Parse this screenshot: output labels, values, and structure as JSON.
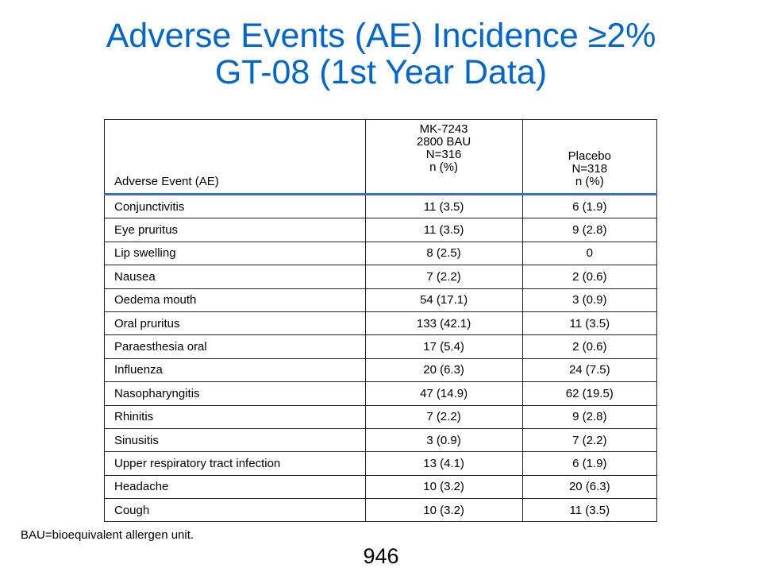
{
  "title": {
    "line1": "Adverse Events (AE) Incidence ≥2%",
    "line2": "GT-08 (1st Year Data)"
  },
  "table": {
    "header": {
      "ae": "Adverse Event (AE)",
      "drug": [
        "MK-7243",
        "2800 BAU",
        "N=316",
        "n (%)"
      ],
      "placebo": [
        "Placebo",
        "N=318",
        "n (%)"
      ]
    },
    "rows": [
      {
        "event": "Conjunctivitis",
        "drug": "11 (3.5)",
        "placebo": "6 (1.9)"
      },
      {
        "event": "Eye pruritus",
        "drug": "11 (3.5)",
        "placebo": "9 (2.8)"
      },
      {
        "event": "Lip swelling",
        "drug": "8 (2.5)",
        "placebo": "0"
      },
      {
        "event": "Nausea",
        "drug": "7 (2.2)",
        "placebo": "2 (0.6)"
      },
      {
        "event": "Oedema mouth",
        "drug": "54 (17.1)",
        "placebo": "3 (0.9)"
      },
      {
        "event": "Oral pruritus",
        "drug": "133 (42.1)",
        "placebo": "11 (3.5)"
      },
      {
        "event": "Paraesthesia oral",
        "drug": "17 (5.4)",
        "placebo": "2 (0.6)"
      },
      {
        "event": "Influenza",
        "drug": "20 (6.3)",
        "placebo": "24 (7.5)"
      },
      {
        "event": "Nasopharyngitis",
        "drug": "47 (14.9)",
        "placebo": "62 (19.5)"
      },
      {
        "event": "Rhinitis",
        "drug": "7 (2.2)",
        "placebo": "9 (2.8)"
      },
      {
        "event": "Sinusitis",
        "drug": "3 (0.9)",
        "placebo": "7 (2.2)"
      },
      {
        "event": "Upper respiratory tract infection",
        "drug": "13 (4.1)",
        "placebo": "6 (1.9)"
      },
      {
        "event": "Headache",
        "drug": "10 (3.2)",
        "placebo": "20 (6.3)"
      },
      {
        "event": "Cough",
        "drug": "10 (3.2)",
        "placebo": "11 (3.5)"
      }
    ]
  },
  "footnote": "BAU=bioequivalent allergen unit.",
  "page_number": "946",
  "colors": {
    "title": "#0066cc",
    "header_rule": "#3a6fc4"
  }
}
